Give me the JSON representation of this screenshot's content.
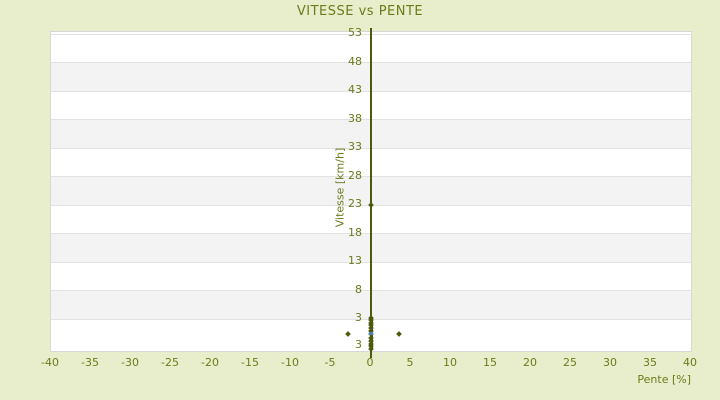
{
  "chart_data": {
    "type": "scatter",
    "title": "VITESSE vs PENTE",
    "xlabel": "Pente [%]",
    "ylabel": "Vitesse [km/h]",
    "xlim": [
      -40,
      40
    ],
    "ylim": [
      -2.6,
      53.4
    ],
    "x_ticks": [
      -40,
      -35,
      -30,
      -25,
      -20,
      -15,
      -10,
      -5,
      0,
      5,
      10,
      15,
      20,
      25,
      30,
      35,
      40
    ],
    "y_ticks": [
      53,
      48,
      43,
      38,
      33,
      28,
      23,
      18,
      13,
      8,
      3
    ],
    "y_axis_extra_bottom_label": {
      "text": "3",
      "y": -1.7
    },
    "grid": true,
    "legend": "none",
    "banding": "alternating white/gray horizontal bands between y gridlines, top band white",
    "y_axis_line_at_x": 0,
    "series": [
      {
        "name": "mesures",
        "marker": "diamond",
        "color": "#4c5a0e",
        "points": [
          [
            -2.9,
            0.3
          ],
          [
            3.5,
            0.3
          ],
          [
            0,
            23
          ],
          [
            0,
            3.2
          ],
          [
            0,
            2.9
          ],
          [
            0,
            2.4
          ],
          [
            0,
            1.9
          ],
          [
            0,
            1.4
          ],
          [
            0,
            0.9
          ],
          [
            0,
            0.3
          ],
          [
            0,
            -0.3
          ],
          [
            0,
            -0.8
          ],
          [
            0,
            -1.3
          ],
          [
            0,
            -1.8
          ],
          [
            0,
            -2.3
          ]
        ]
      },
      {
        "name": "point-surligne",
        "marker": "square",
        "color": "#4d80ba",
        "points": [
          [
            0,
            0.45
          ]
        ]
      }
    ],
    "cluster_column": {
      "x": 0,
      "y_from": -2.5,
      "y_to": 3.3,
      "note": "dense overlapping points at pente 0"
    }
  },
  "colors": {
    "background": "#e8eecb",
    "text": "#6c7a1c",
    "band_white": "#ffffff",
    "band_gray": "#f3f3f3",
    "gridline": "#e2e2e2",
    "plot_border": "#d8d8d8",
    "axis_line": "#4c5a0e",
    "marker": "#4c5a0e",
    "highlight_marker": "#4d80ba"
  }
}
